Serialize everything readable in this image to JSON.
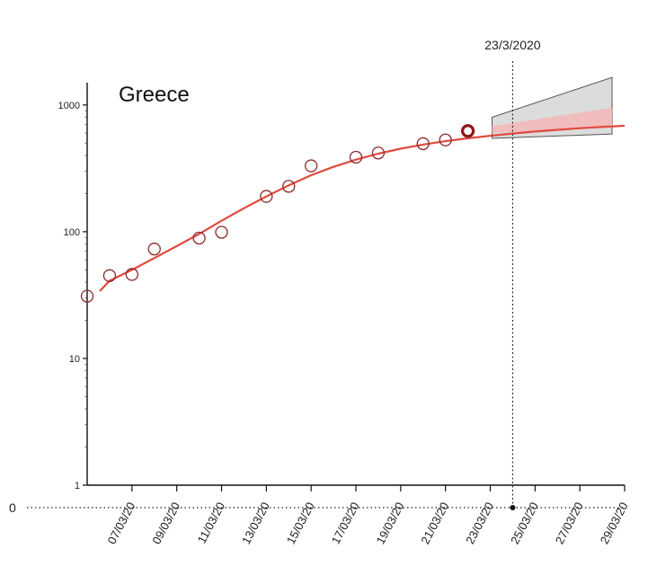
{
  "chart_data": {
    "type": "scatter",
    "title": "Greece",
    "xlabel": "",
    "ylabel": "",
    "y_scale": "log",
    "ylim": [
      1,
      1500
    ],
    "xlim": [
      "05/03/20",
      "29/03/20"
    ],
    "grid": false,
    "y_ticks": [
      {
        "value": 1,
        "label": "1"
      },
      {
        "value": 10,
        "label": "10"
      },
      {
        "value": 100,
        "label": "100"
      },
      {
        "value": 1000,
        "label": "1000"
      }
    ],
    "x_ticks": [
      "07/03/20",
      "09/03/20",
      "11/03/20",
      "13/03/20",
      "15/03/20",
      "17/03/20",
      "19/03/20",
      "21/03/20",
      "23/03/20",
      "25/03/20",
      "27/03/20",
      "29/03/20"
    ],
    "observed": {
      "dates": [
        "05/03/20",
        "06/03/20",
        "07/03/20",
        "08/03/20",
        "10/03/20",
        "11/03/20",
        "13/03/20",
        "14/03/20",
        "15/03/20",
        "17/03/20",
        "18/03/20",
        "20/03/20",
        "21/03/20",
        "22/03/20"
      ],
      "values": [
        31,
        45,
        46,
        73,
        89,
        99,
        190,
        228,
        331,
        387,
        418,
        495,
        530,
        624
      ],
      "color": "#8b2a2a"
    },
    "highlight_point": {
      "date": "22/03/20",
      "value": 624,
      "color": "#8b1a1a"
    },
    "fit_curve": {
      "dates": [
        "05/03/20",
        "06/03/20",
        "07/03/20",
        "08/03/20",
        "09/03/20",
        "10/03/20",
        "11/03/20",
        "12/03/20",
        "13/03/20",
        "14/03/20",
        "15/03/20",
        "16/03/20",
        "17/03/20",
        "18/03/20",
        "19/03/20",
        "20/03/20",
        "21/03/20",
        "22/03/20",
        "23/03/20",
        "24/03/20",
        "25/03/20",
        "26/03/20",
        "27/03/20",
        "28/03/20",
        "29/03/20"
      ],
      "values": [
        34,
        41,
        50,
        62,
        77,
        96,
        122,
        153,
        190,
        232,
        279,
        325,
        370,
        413,
        452,
        487,
        518,
        546,
        572,
        595,
        617,
        637,
        656,
        672,
        685
      ],
      "color": "#e04a3f"
    },
    "forecast_band_outer": {
      "dates": [
        "23/03/20",
        "29/03/20"
      ],
      "upper": [
        800,
        1650
      ],
      "lower": [
        545,
        590
      ],
      "color": "#dcdcdc"
    },
    "forecast_band_inner": {
      "dates": [
        "23/03/20",
        "29/03/20"
      ],
      "upper": [
        680,
        950
      ],
      "lower": [
        600,
        660
      ],
      "color": "#f3b8b8"
    },
    "vertical_marker": {
      "date": "24/03/20",
      "label": "23/3/2020"
    },
    "baseline": {
      "label": "0",
      "dot_date": "24/03/20"
    }
  }
}
